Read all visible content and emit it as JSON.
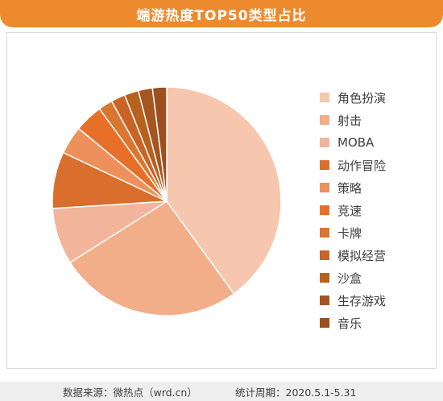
{
  "chart_data": {
    "type": "pie",
    "title": "端游热度TOP50类型占比",
    "legend_position": "right",
    "slices": [
      {
        "label": "角色扮演",
        "value": 40,
        "color": "#f6c7ae"
      },
      {
        "label": "射击",
        "value": 26,
        "color": "#f2ad89"
      },
      {
        "label": "MOBA",
        "value": 8,
        "color": "#f3b49c"
      },
      {
        "label": "动作冒险",
        "value": 8,
        "color": "#d96e2d"
      },
      {
        "label": "策略",
        "value": 4,
        "color": "#ee905c"
      },
      {
        "label": "竞速",
        "value": 4,
        "color": "#e86f27"
      },
      {
        "label": "卡牌",
        "value": 2,
        "color": "#d9762f"
      },
      {
        "label": "模拟经营",
        "value": 2,
        "color": "#c96426"
      },
      {
        "label": "沙盒",
        "value": 2,
        "color": "#b8611f"
      },
      {
        "label": "生存游戏",
        "value": 2,
        "color": "#a55520"
      },
      {
        "label": "音乐",
        "value": 2,
        "color": "#9c4f1f"
      }
    ]
  },
  "footer": {
    "source": "数据来源：微热点（wrd.cn）",
    "period": "统计周期：2020.5.1-5.31"
  },
  "colors": {
    "title_bar": "#ee8a2e",
    "footer_bg": "#eeeeee"
  }
}
